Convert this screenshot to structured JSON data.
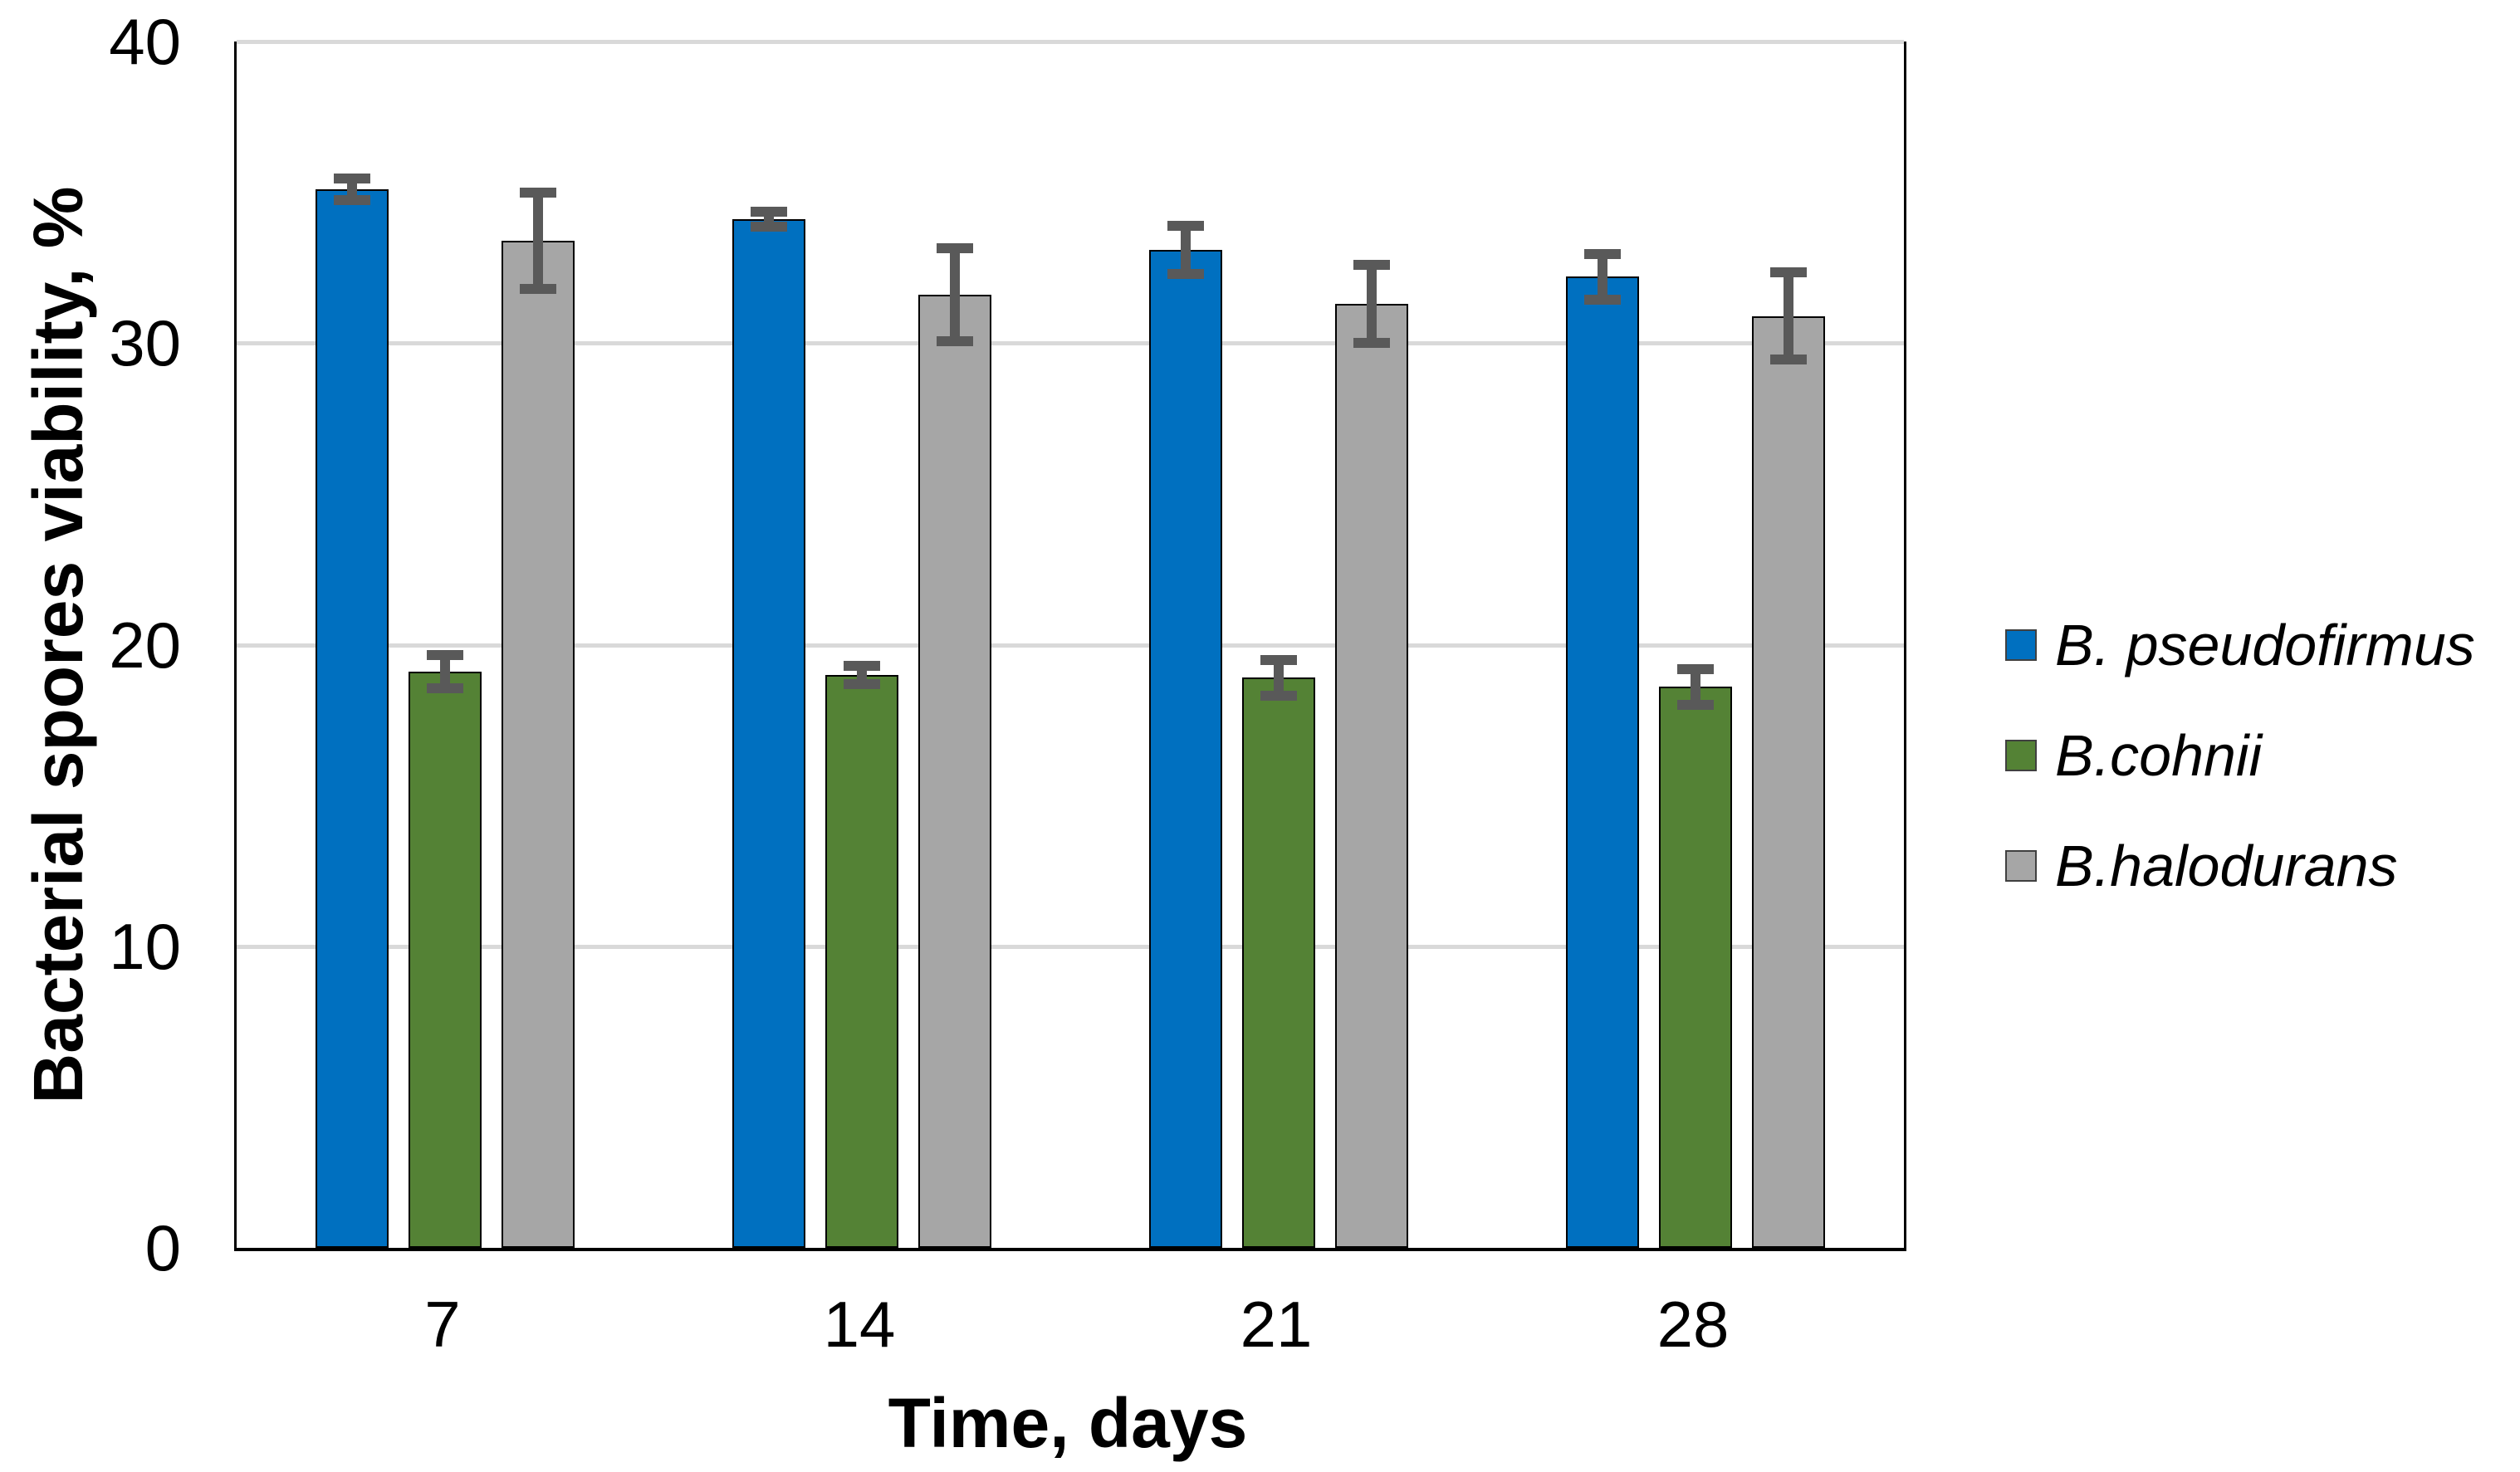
{
  "chart_data": {
    "type": "bar",
    "title": "",
    "xlabel": "Time, days",
    "ylabel": "Bacterial spores viability, %",
    "categories": [
      "7",
      "14",
      "21",
      "28"
    ],
    "series": [
      {
        "name": "B. pseudofirmus",
        "color": "#0070C0",
        "values": [
          35.1,
          34.1,
          33.1,
          32.2
        ],
        "errors": [
          0.35,
          0.25,
          0.8,
          0.75
        ]
      },
      {
        "name": "B.cohnii",
        "color": "#548235",
        "values": [
          19.1,
          19.0,
          18.9,
          18.6
        ],
        "errors": [
          0.55,
          0.3,
          0.6,
          0.6
        ]
      },
      {
        "name": "B.halodurans",
        "color": "#A6A6A6",
        "values": [
          33.4,
          31.6,
          31.3,
          30.9
        ],
        "errors": [
          1.6,
          1.55,
          1.3,
          1.45
        ]
      }
    ],
    "ylim": [
      0,
      40
    ],
    "ytick_step": 10,
    "yticks": [
      "0",
      "10",
      "20",
      "30",
      "40"
    ],
    "grid": true,
    "legend_position": "right",
    "gridline_color": "#D9D9D9",
    "error_bar_color": "#595959",
    "axis_color": "#000000"
  }
}
